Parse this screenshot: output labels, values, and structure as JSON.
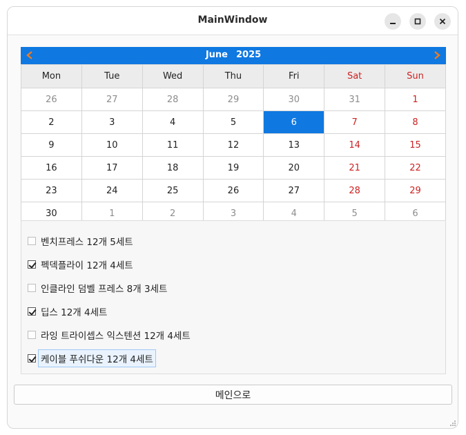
{
  "window": {
    "title": "MainWindow"
  },
  "calendar": {
    "month": "June",
    "year": "2025",
    "weekdays": [
      "Mon",
      "Tue",
      "Wed",
      "Thu",
      "Fri",
      "Sat",
      "Sun"
    ],
    "weeks": [
      [
        "26",
        "27",
        "28",
        "29",
        "30",
        "31",
        "1"
      ],
      [
        "2",
        "3",
        "4",
        "5",
        "6",
        "7",
        "8"
      ],
      [
        "9",
        "10",
        "11",
        "12",
        "13",
        "14",
        "15"
      ],
      [
        "16",
        "17",
        "18",
        "19",
        "20",
        "21",
        "22"
      ],
      [
        "23",
        "24",
        "25",
        "26",
        "27",
        "28",
        "29"
      ],
      [
        "30",
        "1",
        "2",
        "3",
        "4",
        "5",
        "6"
      ]
    ],
    "selected_day": "6",
    "colors": {
      "header": "#0f78e1",
      "weekend": "#cc2222",
      "other_month": "#8c8c8c",
      "nav_arrow": "#f07c1e"
    }
  },
  "checklist": [
    {
      "label": "벤치프레스 12개 5세트",
      "checked": false
    },
    {
      "label": "펙덱플라이 12개 4세트",
      "checked": true
    },
    {
      "label": "인클라인 덤벨 프레스 8개 3세트",
      "checked": false
    },
    {
      "label": "딥스 12개 4세트",
      "checked": true
    },
    {
      "label": "라잉 트라이셉스 익스텐션 12개 4세트",
      "checked": false
    },
    {
      "label": "케이블 푸쉬다운 12개 4세트",
      "checked": true
    }
  ],
  "main_button": {
    "label": "메인으로"
  }
}
